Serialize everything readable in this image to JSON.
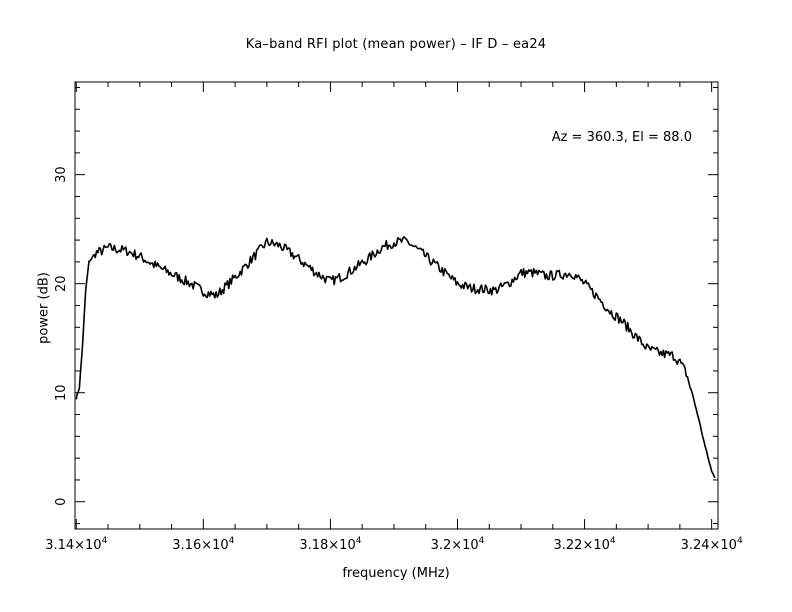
{
  "chart_data": {
    "type": "line",
    "title": "Ka–band RFI plot (mean power) – IF D – ea24",
    "xlabel": "frequency (MHz)",
    "ylabel": "power (dB)",
    "annotation": "Az = 360.3, El = 88.0",
    "xlim": [
      31398,
      32410
    ],
    "ylim": [
      -2.5,
      38.5
    ],
    "x_ticks": [
      {
        "value": 31400,
        "mantissa": "3.14",
        "exponent": "4"
      },
      {
        "value": 31600,
        "mantissa": "3.16",
        "exponent": "4"
      },
      {
        "value": 31800,
        "mantissa": "3.18",
        "exponent": "4"
      },
      {
        "value": 32000,
        "mantissa": "3.2",
        "exponent": "4"
      },
      {
        "value": 32200,
        "mantissa": "3.22",
        "exponent": "4"
      },
      {
        "value": 32400,
        "mantissa": "3.24",
        "exponent": "4"
      }
    ],
    "y_ticks": [
      0,
      10,
      20,
      30
    ],
    "grid": false,
    "series": [
      {
        "color": "#000000",
        "x": [
          31400,
          31405,
          31410,
          31415,
          31420,
          31430,
          31440,
          31450,
          31460,
          31480,
          31500,
          31520,
          31540,
          31560,
          31580,
          31600,
          31620,
          31640,
          31660,
          31680,
          31700,
          31720,
          31740,
          31760,
          31780,
          31800,
          31820,
          31840,
          31860,
          31880,
          31900,
          31920,
          31940,
          31960,
          31980,
          32000,
          32020,
          32040,
          32060,
          32080,
          32100,
          32120,
          32140,
          32160,
          32180,
          32200,
          32220,
          32240,
          32260,
          32280,
          32300,
          32320,
          32340,
          32350,
          32360,
          32370,
          32380,
          32390,
          32400,
          32405
        ],
        "y": [
          9.5,
          10.5,
          14.5,
          19.5,
          22.0,
          22.8,
          23.0,
          23.3,
          23.2,
          23.0,
          22.5,
          21.8,
          21.2,
          20.6,
          20.0,
          19.3,
          18.9,
          20.0,
          21.2,
          22.5,
          23.8,
          23.5,
          22.7,
          21.8,
          20.9,
          20.2,
          20.7,
          21.5,
          22.3,
          23.3,
          23.8,
          23.9,
          23.0,
          22.0,
          21.0,
          20.0,
          19.6,
          19.5,
          19.4,
          20.0,
          21.0,
          21.0,
          20.7,
          20.8,
          21.0,
          20.0,
          18.8,
          17.5,
          16.5,
          15.2,
          14.0,
          13.6,
          13.4,
          12.8,
          11.8,
          9.8,
          7.5,
          5.0,
          2.8,
          2.2
        ]
      }
    ]
  }
}
